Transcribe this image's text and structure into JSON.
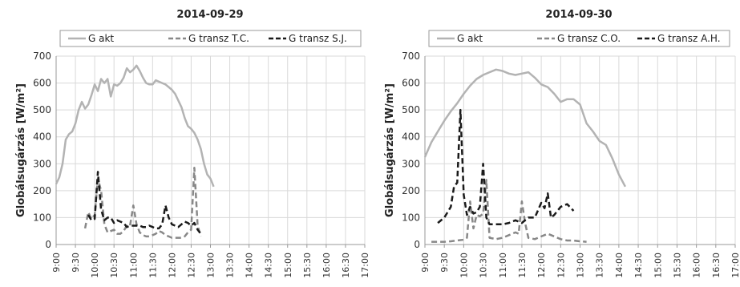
{
  "chart_data": [
    {
      "type": "line",
      "title": "2014-09-29",
      "xlabel": "",
      "ylabel": "Globálsugárzás [W/m²]",
      "ylim": [
        0,
        700
      ],
      "y_ticks": [
        0,
        100,
        200,
        300,
        400,
        500,
        600,
        700
      ],
      "xlim": [
        "9:00",
        "17:00"
      ],
      "x_ticks": [
        "9:00",
        "9:30",
        "10:00",
        "10:30",
        "11:00",
        "11:30",
        "12:00",
        "12:30",
        "13:00",
        "13:30",
        "14:00",
        "14:30",
        "15:00",
        "15:30",
        "16:00",
        "16:30",
        "17:00"
      ],
      "grid": true,
      "legend_position": "top",
      "series": [
        {
          "name": "G akt",
          "color": "#b3b3b3",
          "style": "solid",
          "points": [
            [
              "9:00",
              225
            ],
            [
              "9:05",
              250
            ],
            [
              "9:10",
              300
            ],
            [
              "9:15",
              390
            ],
            [
              "9:20",
              410
            ],
            [
              "9:25",
              420
            ],
            [
              "9:30",
              450
            ],
            [
              "9:35",
              500
            ],
            [
              "9:40",
              530
            ],
            [
              "9:45",
              505
            ],
            [
              "9:50",
              520
            ],
            [
              "9:55",
              555
            ],
            [
              "10:00",
              595
            ],
            [
              "10:05",
              570
            ],
            [
              "10:10",
              615
            ],
            [
              "10:15",
              600
            ],
            [
              "10:20",
              615
            ],
            [
              "10:25",
              550
            ],
            [
              "10:30",
              595
            ],
            [
              "10:35",
              590
            ],
            [
              "10:40",
              600
            ],
            [
              "10:45",
              620
            ],
            [
              "10:50",
              655
            ],
            [
              "10:55",
              640
            ],
            [
              "11:00",
              650
            ],
            [
              "11:05",
              665
            ],
            [
              "11:10",
              645
            ],
            [
              "11:15",
              620
            ],
            [
              "11:20",
              600
            ],
            [
              "11:25",
              595
            ],
            [
              "11:30",
              595
            ],
            [
              "11:35",
              610
            ],
            [
              "11:40",
              605
            ],
            [
              "11:45",
              600
            ],
            [
              "11:50",
              595
            ],
            [
              "11:55",
              585
            ],
            [
              "12:00",
              575
            ],
            [
              "12:05",
              560
            ],
            [
              "12:10",
              535
            ],
            [
              "12:15",
              510
            ],
            [
              "12:20",
              470
            ],
            [
              "12:25",
              440
            ],
            [
              "12:30",
              430
            ],
            [
              "12:35",
              415
            ],
            [
              "12:40",
              390
            ],
            [
              "12:45",
              355
            ],
            [
              "12:50",
              300
            ],
            [
              "12:55",
              260
            ],
            [
              "13:00",
              245
            ],
            [
              "13:05",
              215
            ]
          ]
        },
        {
          "name": "G transz T.C.",
          "color": "#888888",
          "style": "dashed",
          "points": [
            [
              "9:45",
              60
            ],
            [
              "9:50",
              120
            ],
            [
              "9:55",
              95
            ],
            [
              "10:00",
              110
            ],
            [
              "10:05",
              245
            ],
            [
              "10:10",
              200
            ],
            [
              "10:15",
              75
            ],
            [
              "10:20",
              45
            ],
            [
              "10:25",
              50
            ],
            [
              "10:30",
              55
            ],
            [
              "10:35",
              40
            ],
            [
              "10:40",
              40
            ],
            [
              "10:45",
              50
            ],
            [
              "10:50",
              70
            ],
            [
              "10:55",
              70
            ],
            [
              "11:00",
              145
            ],
            [
              "11:05",
              75
            ],
            [
              "11:10",
              45
            ],
            [
              "11:15",
              35
            ],
            [
              "11:20",
              30
            ],
            [
              "11:25",
              30
            ],
            [
              "11:30",
              35
            ],
            [
              "11:35",
              40
            ],
            [
              "11:40",
              50
            ],
            [
              "11:45",
              45
            ],
            [
              "11:50",
              35
            ],
            [
              "11:55",
              30
            ],
            [
              "12:00",
              25
            ],
            [
              "12:05",
              25
            ],
            [
              "12:10",
              25
            ],
            [
              "12:15",
              25
            ],
            [
              "12:20",
              30
            ],
            [
              "12:25",
              45
            ],
            [
              "12:30",
              55
            ],
            [
              "12:35",
              285
            ],
            [
              "12:40",
              70
            ],
            [
              "12:45",
              30
            ]
          ]
        },
        {
          "name": "G transz S.J.",
          "color": "#1a1a1a",
          "style": "dashed",
          "points": [
            [
              "9:50",
              110
            ],
            [
              "9:55",
              90
            ],
            [
              "10:00",
              95
            ],
            [
              "10:05",
              270
            ],
            [
              "10:10",
              130
            ],
            [
              "10:15",
              90
            ],
            [
              "10:20",
              100
            ],
            [
              "10:25",
              100
            ],
            [
              "10:30",
              80
            ],
            [
              "10:35",
              90
            ],
            [
              "10:40",
              85
            ],
            [
              "10:45",
              80
            ],
            [
              "10:50",
              65
            ],
            [
              "10:55",
              70
            ],
            [
              "11:00",
              70
            ],
            [
              "11:05",
              70
            ],
            [
              "11:10",
              70
            ],
            [
              "11:15",
              65
            ],
            [
              "11:20",
              65
            ],
            [
              "11:25",
              70
            ],
            [
              "11:30",
              65
            ],
            [
              "11:35",
              60
            ],
            [
              "11:40",
              60
            ],
            [
              "11:45",
              75
            ],
            [
              "11:50",
              145
            ],
            [
              "11:55",
              100
            ],
            [
              "12:00",
              75
            ],
            [
              "12:05",
              70
            ],
            [
              "12:10",
              65
            ],
            [
              "12:15",
              75
            ],
            [
              "12:20",
              85
            ],
            [
              "12:25",
              80
            ],
            [
              "12:30",
              70
            ],
            [
              "12:35",
              80
            ],
            [
              "12:40",
              55
            ],
            [
              "12:45",
              40
            ]
          ]
        }
      ]
    },
    {
      "type": "line",
      "title": "2014-09-30",
      "xlabel": "",
      "ylabel": "Globálsugárzás [W/m²]",
      "ylim": [
        0,
        700
      ],
      "y_ticks": [
        0,
        100,
        200,
        300,
        400,
        500,
        600,
        700
      ],
      "xlim": [
        "9:00",
        "17:00"
      ],
      "x_ticks": [
        "9:00",
        "9:30",
        "10:00",
        "10:30",
        "11:00",
        "11:30",
        "12:00",
        "12:30",
        "13:00",
        "13:30",
        "14:00",
        "14:30",
        "15:00",
        "15:30",
        "16:00",
        "16:30",
        "17:00"
      ],
      "grid": true,
      "legend_position": "top",
      "series": [
        {
          "name": "G akt",
          "color": "#b3b3b3",
          "style": "solid",
          "points": [
            [
              "9:00",
              325
            ],
            [
              "9:10",
              380
            ],
            [
              "9:20",
              420
            ],
            [
              "9:30",
              460
            ],
            [
              "9:40",
              495
            ],
            [
              "9:50",
              525
            ],
            [
              "10:00",
              560
            ],
            [
              "10:10",
              590
            ],
            [
              "10:20",
              615
            ],
            [
              "10:30",
              630
            ],
            [
              "10:40",
              640
            ],
            [
              "10:50",
              650
            ],
            [
              "11:00",
              645
            ],
            [
              "11:10",
              635
            ],
            [
              "11:20",
              630
            ],
            [
              "11:30",
              635
            ],
            [
              "11:40",
              640
            ],
            [
              "11:50",
              620
            ],
            [
              "12:00",
              595
            ],
            [
              "12:10",
              585
            ],
            [
              "12:20",
              560
            ],
            [
              "12:30",
              530
            ],
            [
              "12:40",
              540
            ],
            [
              "12:50",
              540
            ],
            [
              "13:00",
              520
            ],
            [
              "13:10",
              450
            ],
            [
              "13:20",
              420
            ],
            [
              "13:30",
              385
            ],
            [
              "13:40",
              370
            ],
            [
              "13:50",
              320
            ],
            [
              "14:00",
              260
            ],
            [
              "14:10",
              215
            ]
          ]
        },
        {
          "name": "G transz C.O.",
          "color": "#888888",
          "style": "dashed",
          "points": [
            [
              "9:10",
              10
            ],
            [
              "9:20",
              10
            ],
            [
              "9:30",
              10
            ],
            [
              "9:40",
              12
            ],
            [
              "9:50",
              15
            ],
            [
              "10:00",
              18
            ],
            [
              "10:05",
              25
            ],
            [
              "10:10",
              160
            ],
            [
              "10:15",
              60
            ],
            [
              "10:20",
              110
            ],
            [
              "10:25",
              105
            ],
            [
              "10:30",
              115
            ],
            [
              "10:35",
              240
            ],
            [
              "10:40",
              25
            ],
            [
              "10:50",
              20
            ],
            [
              "11:00",
              25
            ],
            [
              "11:10",
              35
            ],
            [
              "11:20",
              45
            ],
            [
              "11:25",
              40
            ],
            [
              "11:30",
              160
            ],
            [
              "11:35",
              80
            ],
            [
              "11:40",
              25
            ],
            [
              "11:50",
              20
            ],
            [
              "12:00",
              30
            ],
            [
              "12:10",
              40
            ],
            [
              "12:20",
              30
            ],
            [
              "12:30",
              20
            ],
            [
              "12:40",
              15
            ],
            [
              "12:50",
              15
            ],
            [
              "13:00",
              12
            ],
            [
              "13:10",
              10
            ]
          ]
        },
        {
          "name": "G transz A.H.",
          "color": "#1a1a1a",
          "style": "dashed",
          "points": [
            [
              "9:20",
              80
            ],
            [
              "9:30",
              100
            ],
            [
              "9:40",
              140
            ],
            [
              "9:45",
              215
            ],
            [
              "9:50",
              230
            ],
            [
              "9:55",
              500
            ],
            [
              "10:00",
              185
            ],
            [
              "10:05",
              110
            ],
            [
              "10:10",
              140
            ],
            [
              "10:15",
              115
            ],
            [
              "10:20",
              120
            ],
            [
              "10:25",
              140
            ],
            [
              "10:30",
              300
            ],
            [
              "10:35",
              100
            ],
            [
              "10:40",
              75
            ],
            [
              "10:50",
              75
            ],
            [
              "11:00",
              75
            ],
            [
              "11:10",
              80
            ],
            [
              "11:20",
              90
            ],
            [
              "11:30",
              80
            ],
            [
              "11:40",
              100
            ],
            [
              "11:50",
              100
            ],
            [
              "12:00",
              155
            ],
            [
              "12:05",
              135
            ],
            [
              "12:10",
              190
            ],
            [
              "12:15",
              100
            ],
            [
              "12:20",
              110
            ],
            [
              "12:30",
              140
            ],
            [
              "12:40",
              150
            ],
            [
              "12:50",
              125
            ]
          ]
        }
      ]
    }
  ]
}
